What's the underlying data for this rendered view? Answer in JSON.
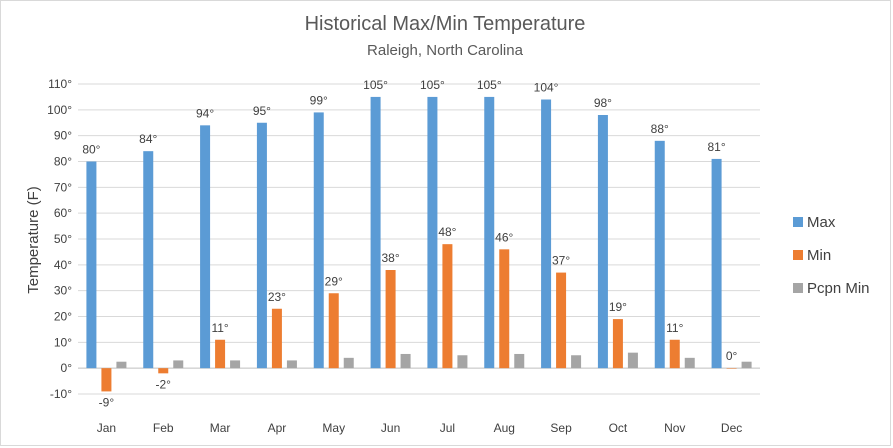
{
  "chart_data": {
    "type": "bar",
    "title": "Historical Max/Min Temperature",
    "subtitle": "Raleigh, North Carolina",
    "ylabel": "Temperature (F)",
    "xlabel": "",
    "ylim": [
      -10,
      110
    ],
    "yticks": [
      -10,
      0,
      10,
      20,
      30,
      40,
      50,
      60,
      70,
      80,
      90,
      100,
      110
    ],
    "tick_suffix": "°",
    "grid": true,
    "legend_position": "right",
    "categories": [
      "Jan",
      "Feb",
      "Mar",
      "Apr",
      "May",
      "Jun",
      "Jul",
      "Aug",
      "Sep",
      "Oct",
      "Nov",
      "Dec"
    ],
    "series": [
      {
        "name": "Max",
        "color": "#5b9bd5",
        "values": [
          80,
          84,
          94,
          95,
          99,
          105,
          105,
          105,
          104,
          98,
          88,
          81
        ],
        "labels": [
          "80°",
          "84°",
          "94°",
          "95°",
          "99°",
          "105°",
          "105°",
          "105°",
          "104°",
          "98°",
          "88°",
          "81°"
        ]
      },
      {
        "name": "Min",
        "color": "#ed7d31",
        "values": [
          -9,
          -2,
          11,
          23,
          29,
          38,
          48,
          46,
          37,
          19,
          11,
          0
        ],
        "labels": [
          "-9°",
          "-2°",
          "11°",
          "23°",
          "29°",
          "38°",
          "48°",
          "46°",
          "37°",
          "19°",
          "11°",
          "0°"
        ]
      },
      {
        "name": "Pcpn Min",
        "color": "#a5a5a5",
        "values": [
          2.5,
          3,
          3,
          3,
          4,
          5.5,
          5,
          5.5,
          5,
          6,
          4,
          2.5
        ],
        "labels": []
      }
    ]
  }
}
